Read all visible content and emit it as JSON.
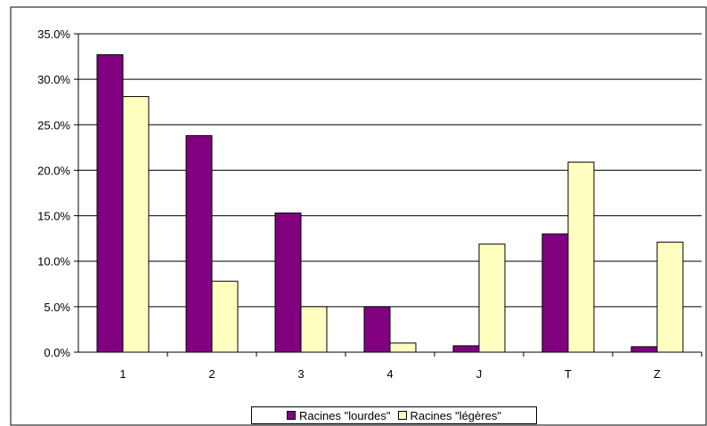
{
  "chart_data": {
    "type": "bar",
    "title": "",
    "xlabel": "",
    "ylabel": "",
    "categories": [
      "1",
      "2",
      "3",
      "4",
      "J",
      "T",
      "Z"
    ],
    "series": [
      {
        "name": "Racines \"lourdes\"",
        "color": "#800080",
        "values": [
          32.7,
          23.8,
          15.3,
          5.0,
          0.7,
          13.0,
          0.6
        ]
      },
      {
        "name": "Racines \"légères\"",
        "color": "#FFFFC0",
        "values": [
          28.1,
          7.8,
          5.0,
          1.0,
          11.9,
          20.9,
          12.1
        ]
      }
    ],
    "yticks": [
      "0.0%",
      "5.0%",
      "10.0%",
      "15.0%",
      "20.0%",
      "25.0%",
      "30.0%",
      "35.0%"
    ],
    "ylim": [
      0,
      35
    ],
    "grid": true,
    "legend_position": "bottom"
  }
}
